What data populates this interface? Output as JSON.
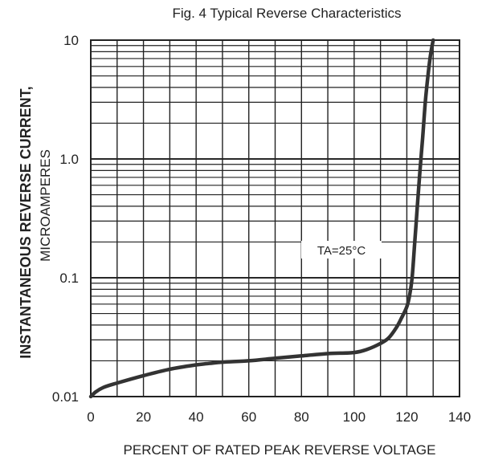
{
  "chart_data": {
    "type": "line",
    "title": "Fig. 4 Typical Reverse Characteristics",
    "xlabel": "PERCENT OF RATED PEAK REVERSE VOLTAGE",
    "ylabel_line1": "INSTANTANEOUS REVERSE CURRENT,",
    "ylabel_line2": "MICROAMPERES",
    "xlim": [
      0,
      140
    ],
    "ylim": [
      0.01,
      10
    ],
    "yscale": "log",
    "grid": true,
    "x_ticks": [
      "0",
      "20",
      "40",
      "60",
      "80",
      "100",
      "120",
      "140"
    ],
    "y_ticks": [
      "0.01",
      "0.1",
      "1.0",
      "10"
    ],
    "annotation": "TA=25°C",
    "series": [
      {
        "x": [
          0,
          2,
          5,
          10,
          20,
          30,
          40,
          45,
          50,
          60,
          70,
          80,
          90,
          100,
          105,
          110,
          113,
          116,
          118,
          120,
          121,
          122,
          123,
          124,
          125,
          126,
          127,
          128,
          129,
          130
        ],
        "y": [
          0.01,
          0.011,
          0.012,
          0.013,
          0.015,
          0.017,
          0.0185,
          0.019,
          0.0195,
          0.02,
          0.021,
          0.022,
          0.023,
          0.0235,
          0.025,
          0.028,
          0.031,
          0.038,
          0.046,
          0.057,
          0.07,
          0.1,
          0.2,
          0.4,
          0.8,
          1.5,
          3.0,
          5.0,
          7.5,
          10
        ]
      }
    ]
  }
}
